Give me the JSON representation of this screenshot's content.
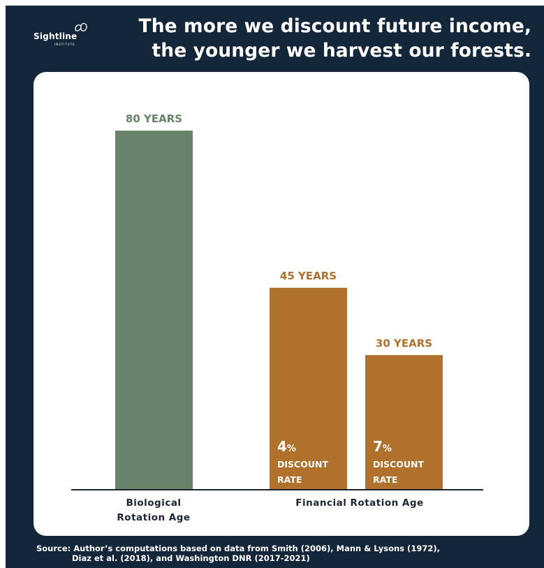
{
  "brand": {
    "name": "Sightline",
    "sub": "INSTITUTE"
  },
  "title_lines": [
    "The more we discount future income,",
    "the younger we harvest our forests."
  ],
  "colors": {
    "background": "#14263a",
    "biological": "#69826a",
    "financial": "#b0712c",
    "axis": "#1b2430"
  },
  "chart_data": {
    "type": "bar",
    "categories": [
      "Biological Rotation Age",
      "Financial Rotation Age (4%)",
      "Financial Rotation Age (7%)"
    ],
    "values": [
      80,
      45,
      30
    ],
    "value_unit": "years",
    "value_labels": [
      "80 YEARS",
      "45 YEARS",
      "30 YEARS"
    ],
    "bar_annotations": [
      null,
      {
        "rate": "4",
        "pct": "%",
        "line1": "DISCOUNT",
        "line2": "RATE"
      },
      {
        "rate": "7",
        "pct": "%",
        "line1": "DISCOUNT",
        "line2": "RATE"
      }
    ],
    "group_labels": [
      {
        "lines": [
          "Biological",
          "Rotation Age"
        ]
      },
      {
        "lines": [
          "Financial Rotation Age"
        ]
      }
    ],
    "ylim": [
      0,
      80
    ],
    "grid": false,
    "title": "",
    "xlabel": "",
    "ylabel": ""
  },
  "source_lines": [
    "Source: Author’s computations based on data from Smith (2006), Mann & Lysons (1972),",
    "Diaz et al. (2018), and Washington DNR (2017-2021)"
  ]
}
